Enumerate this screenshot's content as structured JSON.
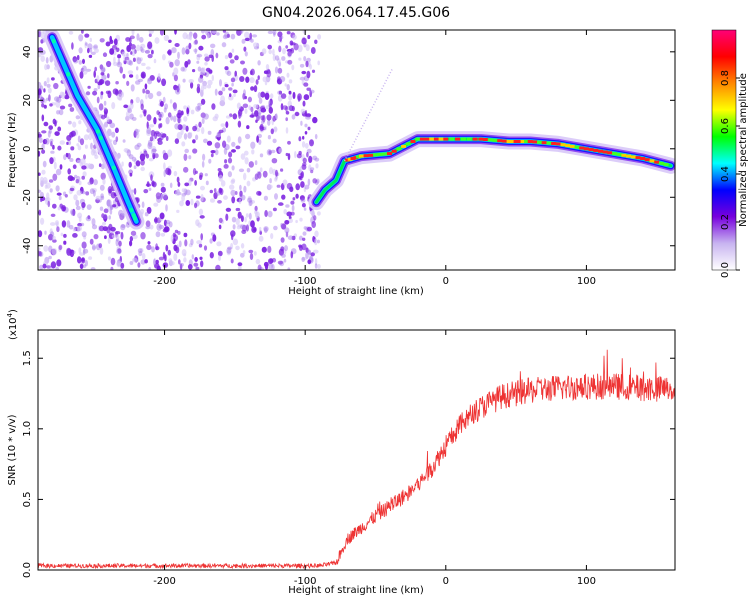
{
  "title": "GN04.2026.064.17.45.G06",
  "chart_data": [
    {
      "type": "heatmap",
      "title": "GN04.2026.064.17.45.G06",
      "xlabel": "Height of straight line (km)",
      "ylabel": "Frequency (Hz)",
      "xlim": [
        -290,
        163
      ],
      "ylim": [
        -50,
        49
      ],
      "xticks": [
        -200,
        -100,
        0,
        100
      ],
      "yticks": [
        -40,
        -20,
        0,
        20,
        40
      ],
      "xtick_labels": [
        "-200",
        "-100",
        "0",
        "100"
      ],
      "ytick_labels": [
        "-40",
        "-20",
        "0",
        "20",
        "40"
      ],
      "noise_region_x": [
        -290,
        -90
      ],
      "ridges": [
        {
          "name": "diagonal ridge",
          "points": [
            [
              -280,
              46
            ],
            [
              -262,
              22
            ],
            [
              -248,
              8
            ],
            [
              -236,
              -8
            ],
            [
              -226,
              -22
            ],
            [
              -220,
              -30
            ]
          ]
        },
        {
          "name": "main ridge",
          "points": [
            [
              -92,
              -22
            ],
            [
              -86,
              -17
            ],
            [
              -78,
              -13
            ],
            [
              -72,
              -5
            ],
            [
              -60,
              -3
            ],
            [
              -40,
              -2
            ],
            [
              -20,
              4
            ],
            [
              0,
              4
            ],
            [
              25,
              4
            ],
            [
              45,
              3
            ],
            [
              60,
              3
            ],
            [
              80,
              2
            ],
            [
              100,
              0
            ],
            [
              120,
              -2
            ],
            [
              140,
              -4
            ],
            [
              160,
              -7
            ]
          ]
        }
      ],
      "colorbar": {
        "label": "Normalized spectral amplitude",
        "range": [
          0,
          1
        ],
        "ticks": [
          0.0,
          0.2,
          0.4,
          0.6,
          0.8
        ],
        "tick_labels": [
          "0.0",
          "0.2",
          "0.4",
          "0.6",
          "0.8"
        ],
        "colors": [
          "#ffffff",
          "#c8b4f0",
          "#7700dd",
          "#0000ff",
          "#00ffff",
          "#00ff00",
          "#ffff00",
          "#ff8800",
          "#ff0000",
          "#ff0077"
        ]
      }
    },
    {
      "type": "line",
      "xlabel": "Height of straight line (km)",
      "ylabel": "SNR (10 * v/v)",
      "multiplier": "(x10",
      "multiplier_exp": "4",
      "multiplier_close": ")",
      "xlim": [
        -290,
        163
      ],
      "ylim": [
        0,
        1.7
      ],
      "xticks": [
        -200,
        -100,
        0,
        100
      ],
      "yticks": [
        0.0,
        0.5,
        1.0,
        1.5
      ],
      "xtick_labels": [
        "-200",
        "-100",
        "0",
        "100"
      ],
      "ytick_labels": [
        "0.0",
        "0.5",
        "1.0",
        "1.5"
      ],
      "series": [
        {
          "name": "SNR",
          "color": "#ee3333",
          "x": [
            -290,
            -200,
            -120,
            -90,
            -78,
            -70,
            -60,
            -50,
            -40,
            -30,
            -20,
            -10,
            0,
            10,
            20,
            30,
            40,
            60,
            80,
            100,
            120,
            140,
            163
          ],
          "y": [
            0.03,
            0.03,
            0.03,
            0.03,
            0.05,
            0.22,
            0.3,
            0.38,
            0.45,
            0.52,
            0.6,
            0.72,
            0.88,
            1.02,
            1.12,
            1.18,
            1.23,
            1.27,
            1.29,
            1.3,
            1.3,
            1.29,
            1.28
          ],
          "noise_amplitude": 0.08
        }
      ]
    }
  ]
}
